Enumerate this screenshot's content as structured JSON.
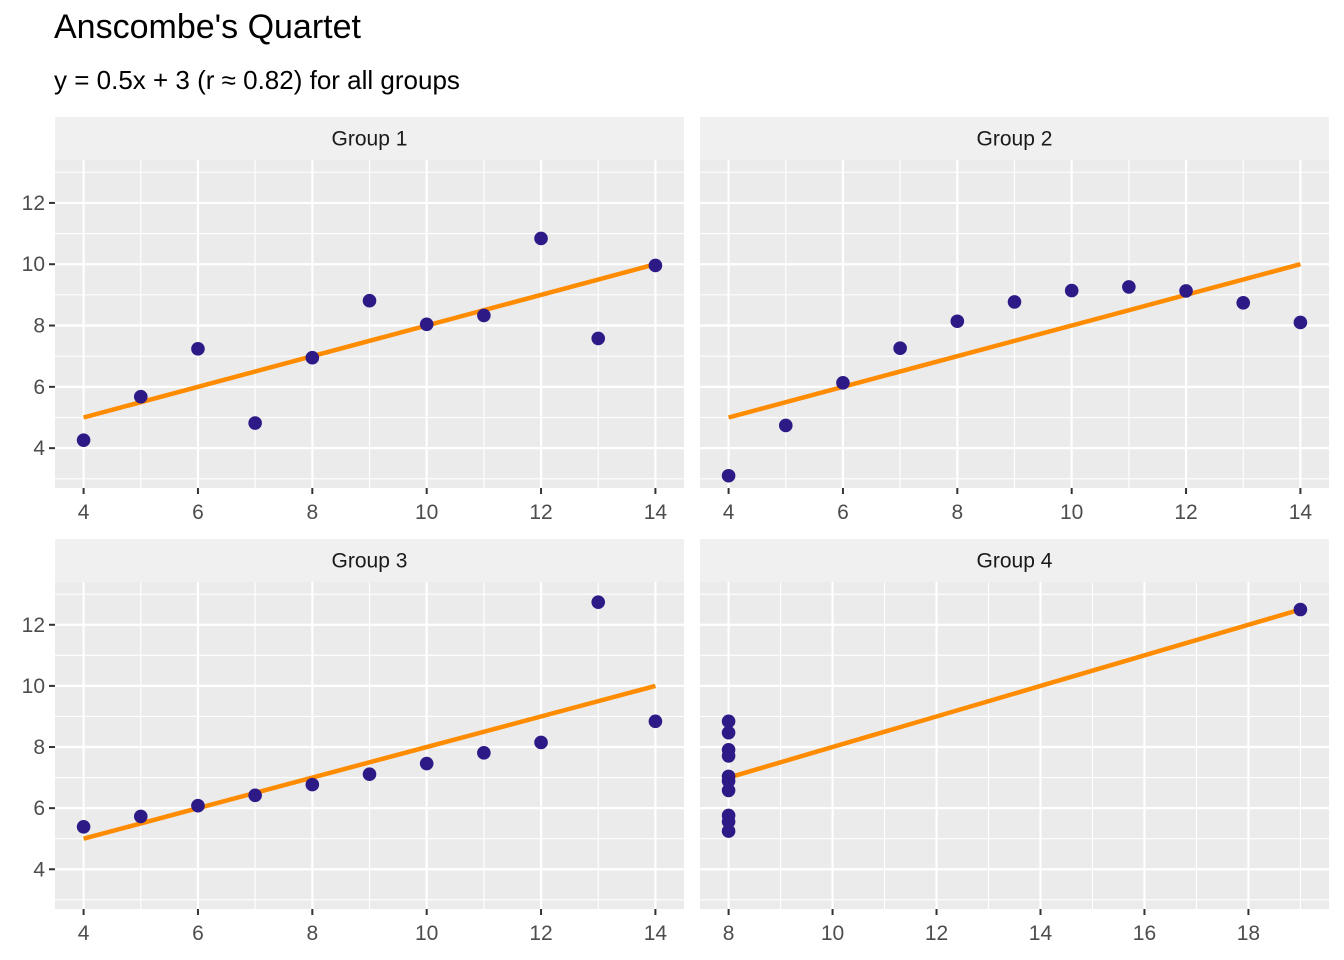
{
  "chart_data": {
    "type": "scatter",
    "title": "Anscombe's Quartet",
    "subtitle": "y = 0.5x + 3 (r ≈ 0.82) for all groups",
    "fit_line": {
      "slope": 0.5,
      "intercept": 3,
      "color": "#FF8C00"
    },
    "point_color": "#2E1A87",
    "panel_background": "#EBEBEB",
    "strip_background": "#F0F0F0",
    "grid": true,
    "ylim": [
      2.7,
      13.4
    ],
    "y_ticks": [
      4,
      6,
      8,
      10,
      12
    ],
    "panels": [
      {
        "name": "Group 1",
        "xlim": [
          3.5,
          14.5
        ],
        "x_ticks": [
          4,
          6,
          8,
          10,
          12,
          14
        ],
        "fit_x": [
          4,
          14
        ],
        "x": [
          10,
          8,
          13,
          9,
          11,
          14,
          6,
          4,
          12,
          7,
          5
        ],
        "y": [
          8.04,
          6.95,
          7.58,
          8.81,
          8.33,
          9.96,
          7.24,
          4.26,
          10.84,
          4.82,
          5.68
        ]
      },
      {
        "name": "Group 2",
        "xlim": [
          3.5,
          14.5
        ],
        "x_ticks": [
          4,
          6,
          8,
          10,
          12,
          14
        ],
        "fit_x": [
          4,
          14
        ],
        "x": [
          10,
          8,
          13,
          9,
          11,
          14,
          6,
          4,
          12,
          7,
          5
        ],
        "y": [
          9.14,
          8.14,
          8.74,
          8.77,
          9.26,
          8.1,
          6.13,
          3.1,
          9.13,
          7.26,
          4.74
        ]
      },
      {
        "name": "Group 3",
        "xlim": [
          3.5,
          14.5
        ],
        "x_ticks": [
          4,
          6,
          8,
          10,
          12,
          14
        ],
        "fit_x": [
          4,
          14
        ],
        "x": [
          10,
          8,
          13,
          9,
          11,
          14,
          6,
          4,
          12,
          7,
          5
        ],
        "y": [
          7.46,
          6.77,
          12.74,
          7.11,
          7.81,
          8.84,
          6.08,
          5.39,
          8.15,
          6.42,
          5.73
        ]
      },
      {
        "name": "Group 4",
        "xlim": [
          7.45,
          19.55
        ],
        "x_ticks": [
          8,
          10,
          12,
          14,
          16,
          18
        ],
        "fit_x": [
          8,
          19
        ],
        "x": [
          8,
          8,
          8,
          8,
          8,
          8,
          8,
          19,
          8,
          8,
          8
        ],
        "y": [
          6.58,
          5.76,
          7.71,
          8.84,
          8.47,
          7.04,
          5.25,
          12.5,
          5.56,
          7.91,
          6.89
        ]
      }
    ]
  }
}
